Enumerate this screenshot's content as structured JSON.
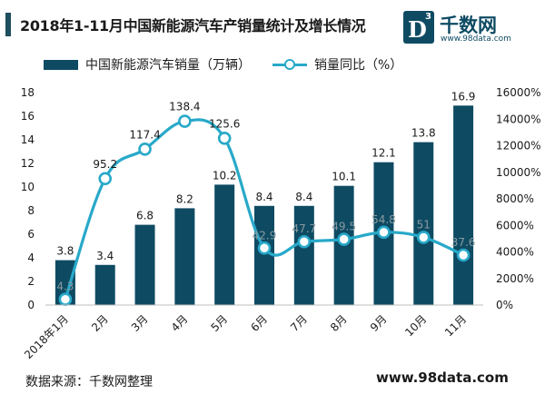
{
  "title": "2018年1-11月中国新能源汽车产销量统计及增长情况",
  "logo": {
    "mark_letter": "D",
    "mark_superscript": "3",
    "name": "千数网",
    "url": "www.98data.com"
  },
  "colors": {
    "bar": "#0e4b63",
    "line": "#28a9c9",
    "axis_text": "#1a1a1a",
    "grid": "#d9d9d9"
  },
  "legend": {
    "bar_label": "中国新能源汽车销量（万辆）",
    "line_label": "销量同比（%）"
  },
  "footer": {
    "source": "数据来源：千数网整理",
    "url": "www.98data.com"
  },
  "chart_data": {
    "type": "bar",
    "title": "2018年1-11月中国新能源汽车产销量统计及增长情况",
    "categories": [
      "2018年1月",
      "2月",
      "3月",
      "4月",
      "5月",
      "6月",
      "7月",
      "8月",
      "9月",
      "10月",
      "11月"
    ],
    "series": [
      {
        "name": "中国新能源汽车销量（万辆）",
        "type": "bar",
        "axis": "left",
        "values": [
          3.8,
          3.4,
          6.8,
          8.2,
          10.2,
          8.4,
          8.4,
          10.1,
          12.1,
          13.8,
          16.9
        ],
        "labels": [
          "3.8",
          "3.4",
          "6.8",
          "8.2",
          "10.2",
          "8.4",
          "8.4",
          "10.1",
          "12.1",
          "13.8",
          "16.9"
        ]
      },
      {
        "name": "销量同比（%）",
        "type": "line",
        "axis": "right",
        "values": [
          4.3,
          95.2,
          117.4,
          138.4,
          125.6,
          42.9,
          47.7,
          49.5,
          54.8,
          51,
          37.6
        ],
        "labels": [
          "4.3",
          "95.2",
          "117.4",
          "138.4",
          "125.6",
          "42.9",
          "47.7",
          "49.5",
          "54.8",
          "51",
          "37.6"
        ]
      }
    ],
    "y_left": {
      "min": 0,
      "max": 18,
      "step": 2,
      "ticks": [
        "0",
        "2",
        "4",
        "6",
        "8",
        "10",
        "12",
        "14",
        "16",
        "18"
      ]
    },
    "y_right": {
      "min": 0,
      "max": 16000,
      "step": 2000,
      "line_multiplier": 100,
      "ticks": [
        "0%",
        "2000%",
        "4000%",
        "6000%",
        "8000%",
        "10000%",
        "12000%",
        "14000%",
        "16000%"
      ]
    },
    "grid": false,
    "legend_position": "top"
  }
}
